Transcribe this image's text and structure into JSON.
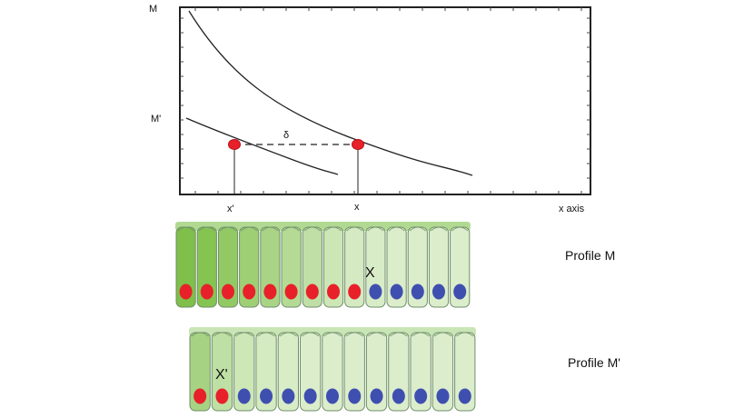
{
  "graph": {
    "y_top_label": "M",
    "y_mid_label": "M'",
    "x_label": "x axis",
    "x_mark": "x",
    "x_prime_mark": "x'",
    "delta_label": "δ"
  },
  "profiles": [
    {
      "label": "Profile M",
      "marked_cell_label": "X",
      "nuclei": [
        "red",
        "red",
        "red",
        "red",
        "red",
        "red",
        "red",
        "red",
        "red",
        "blue",
        "blue",
        "blue",
        "blue",
        "blue"
      ],
      "cell_colors": [
        "#7fbf4a",
        "#86c452",
        "#92c964",
        "#9fcf75",
        "#a9d486",
        "#b5da95",
        "#c0dfa6",
        "#cce6b6",
        "#d5eac2",
        "#d9ecc8",
        "#dbedca",
        "#dcedcc",
        "#dcedcc",
        "#dcedcc"
      ]
    },
    {
      "label": "Profile M'",
      "marked_cell_label": "X'",
      "nuclei": [
        "red",
        "red",
        "blue",
        "blue",
        "blue",
        "blue",
        "blue",
        "blue",
        "blue",
        "blue",
        "blue",
        "blue",
        "blue"
      ],
      "cell_colors": [
        "#a6d383",
        "#bfe0a4",
        "#cde7b7",
        "#d4eac0",
        "#d8ecc6",
        "#dbedca",
        "#dcedcc",
        "#dcedcc",
        "#dcedcc",
        "#dcedcc",
        "#dcedcc",
        "#dcedcc",
        "#dcedcc"
      ]
    }
  ],
  "colors": {
    "red_nucleus": "#e8202a",
    "blue_nucleus": "#3f4fb0",
    "cell_outline": "#6f8f6a"
  }
}
